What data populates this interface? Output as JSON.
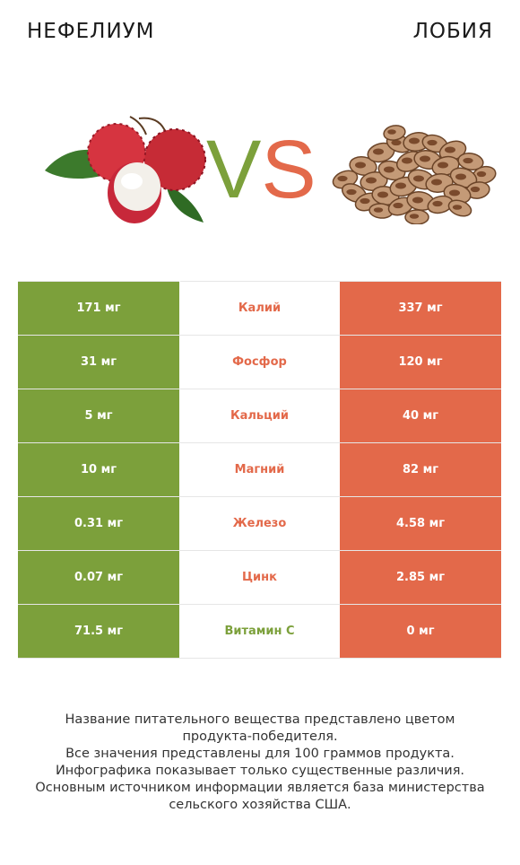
{
  "header": {
    "left_title": "НЕФЕЛИУМ",
    "right_title": "ЛОБИЯ",
    "vs_label": "VS"
  },
  "colors": {
    "left": "#7ca03b",
    "right": "#e3694a"
  },
  "rows": [
    {
      "left": "171 мг",
      "name": "Калий",
      "right": "337 мг",
      "winner": "right"
    },
    {
      "left": "31 мг",
      "name": "Фосфор",
      "right": "120 мг",
      "winner": "right"
    },
    {
      "left": "5 мг",
      "name": "Кальций",
      "right": "40 мг",
      "winner": "right"
    },
    {
      "left": "10 мг",
      "name": "Магний",
      "right": "82 мг",
      "winner": "right"
    },
    {
      "left": "0.31 мг",
      "name": "Железо",
      "right": "4.58 мг",
      "winner": "right"
    },
    {
      "left": "0.07 мг",
      "name": "Цинк",
      "right": "2.85 мг",
      "winner": "right"
    },
    {
      "left": "71.5 мг",
      "name": "Витамин C",
      "right": "0 мг",
      "winner": "left"
    }
  ],
  "footer": {
    "line1": "Название питательного вещества представлено цветом",
    "line2": "продукта-победителя.",
    "line3": "Все значения представлены для 100 граммов продукта.",
    "line4": "Инфографика показывает только существенные различия.",
    "line5": "Основным источником информации является база министерства",
    "line6": "сельского хозяйства США."
  }
}
